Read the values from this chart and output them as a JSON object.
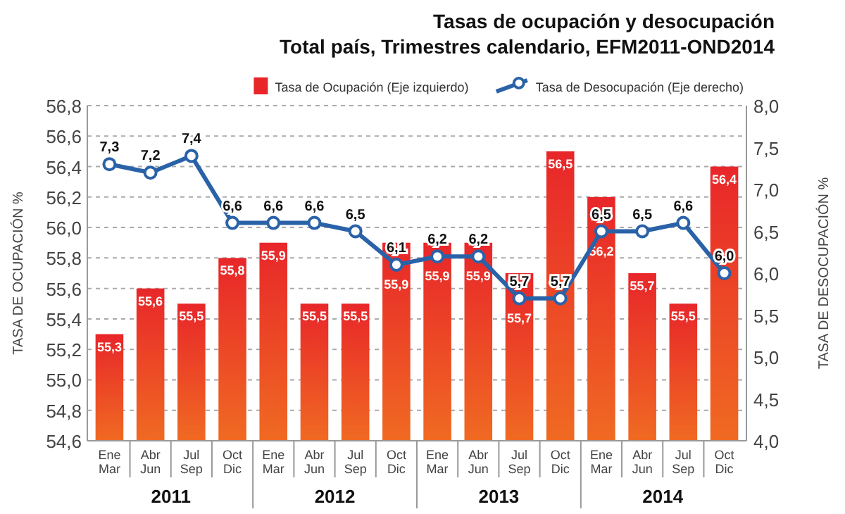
{
  "chart_data": {
    "type": "bar",
    "title": "Tasas de ocupación y desocupación",
    "subtitle": "Total país, Trimestres calendario, EFM2011-OND2014",
    "categories": [
      "Ene Mar",
      "Abr Jun",
      "Jul Sep",
      "Oct Dic",
      "Ene Mar",
      "Abr Jun",
      "Jul Sep",
      "Oct Dic",
      "Ene Mar",
      "Abr Jun",
      "Jul Sep",
      "Oct Dic",
      "Ene Mar",
      "Abr Jun",
      "Jul Sep",
      "Oct Dic"
    ],
    "annotations": [
      "2011",
      "2012",
      "2013",
      "2014"
    ],
    "ylabel": "TASA DE  OCUPACIÓN %",
    "y2label": "TASA DE DESOCUPACIÓN %",
    "series": [
      {
        "name": "Tasa de Ocupación (Eje izquierdo)",
        "type": "bar",
        "color": "#e8262a",
        "values": [
          55.3,
          55.6,
          55.5,
          55.8,
          55.9,
          55.5,
          55.5,
          55.9,
          55.9,
          55.9,
          55.7,
          56.5,
          56.2,
          55.7,
          55.5,
          56.4
        ],
        "value_labels": [
          "55,3",
          "55,6",
          "55,5",
          "55,8",
          "55,9",
          "55,5",
          "55,5",
          "55,9",
          "55,9",
          "55,9",
          "55,7",
          "56,5",
          "56,2",
          "55,7",
          "55,5",
          "56,4"
        ]
      },
      {
        "name": "Tasa de Desocupación (Eje derecho)",
        "type": "line",
        "axis": "y2",
        "color": "#2a62a8",
        "marker": "circle",
        "values": [
          7.3,
          7.2,
          7.4,
          6.6,
          6.6,
          6.6,
          6.5,
          6.1,
          6.2,
          6.2,
          5.7,
          5.7,
          6.5,
          6.5,
          6.6,
          6.0
        ],
        "value_labels": [
          "7,3",
          "7,2",
          "7,4",
          "6,6",
          "6,6",
          "6,6",
          "6,5",
          "6,1",
          "6,2",
          "6,2",
          "5,7",
          "5,7",
          "6,5",
          "6,5",
          "6,6",
          "6,0"
        ]
      }
    ],
    "ylim": [
      54.6,
      56.8
    ],
    "yticks": [
      {
        "value": 54.6,
        "label": "54,6"
      },
      {
        "value": 54.8,
        "label": "54,8"
      },
      {
        "value": 55.0,
        "label": "55,0"
      },
      {
        "value": 55.2,
        "label": "55,2"
      },
      {
        "value": 55.4,
        "label": "55,4"
      },
      {
        "value": 55.6,
        "label": "55,6"
      },
      {
        "value": 55.8,
        "label": "55,8"
      },
      {
        "value": 56.0,
        "label": "56,0"
      },
      {
        "value": 56.2,
        "label": "56,2"
      },
      {
        "value": 56.4,
        "label": "56,4"
      },
      {
        "value": 56.6,
        "label": "56,6"
      },
      {
        "value": 56.8,
        "label": "56,8"
      }
    ],
    "y2lim": [
      4.0,
      8.0
    ],
    "y2ticks": [
      {
        "value": 4.0,
        "label": "4,0"
      },
      {
        "value": 4.5,
        "label": "4,5"
      },
      {
        "value": 5.0,
        "label": "5,0"
      },
      {
        "value": 5.5,
        "label": "5,5"
      },
      {
        "value": 6.0,
        "label": "6,0"
      },
      {
        "value": 6.5,
        "label": "6,5"
      },
      {
        "value": 7.0,
        "label": "7,0"
      },
      {
        "value": 7.5,
        "label": "7,5"
      },
      {
        "value": 8.0,
        "label": "8,0"
      }
    ],
    "grid": "y",
    "legend": "top"
  }
}
